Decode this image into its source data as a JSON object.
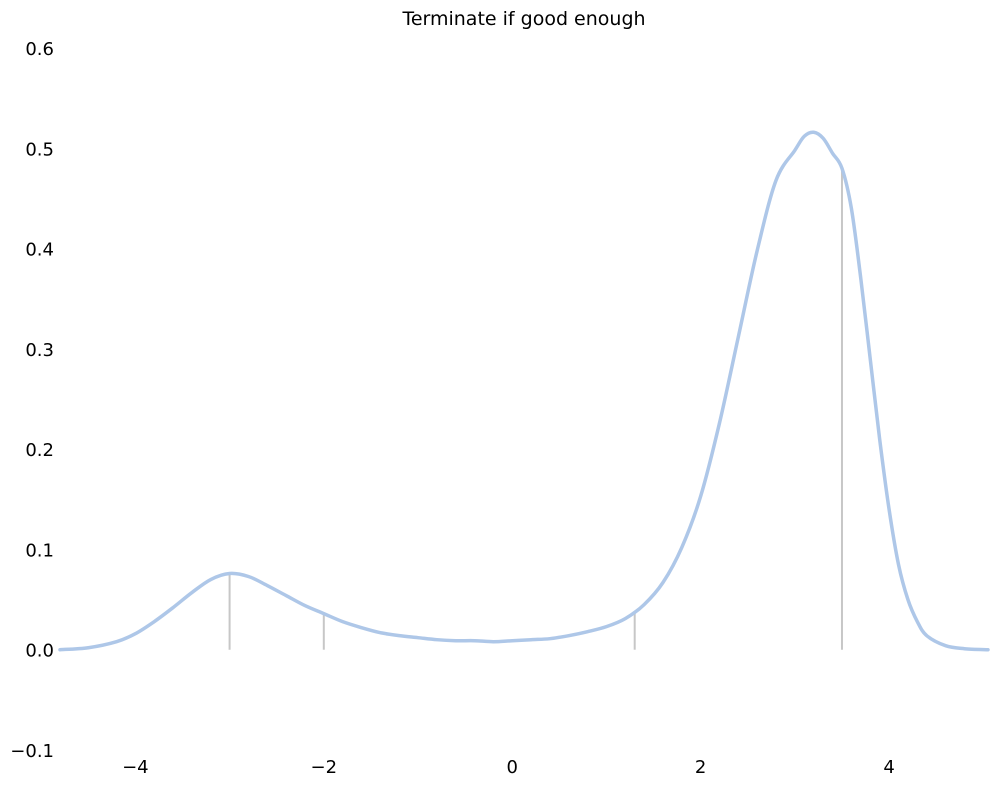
{
  "chart_data": {
    "type": "line",
    "title": "Terminate if good enough",
    "xlabel": "",
    "ylabel": "",
    "xlim": [
      -4.8,
      5.05
    ],
    "ylim": [
      -0.1,
      0.6
    ],
    "grid": false,
    "legend": "none",
    "x_ticks": [
      -4,
      -2,
      0,
      2,
      4
    ],
    "x_tick_labels": [
      "−4",
      "−2",
      "0",
      "2",
      "4"
    ],
    "y_ticks": [
      -0.1,
      0.0,
      0.1,
      0.2,
      0.3,
      0.4,
      0.5,
      0.6
    ],
    "y_tick_labels": [
      "−0.1",
      "0.0",
      "0.1",
      "0.2",
      "0.3",
      "0.4",
      "0.5",
      "0.6"
    ],
    "series": [
      {
        "color": "#aec7e8",
        "x": [
          -4.8,
          -4.5,
          -4.2,
          -4.0,
          -3.8,
          -3.6,
          -3.4,
          -3.2,
          -3.0,
          -2.8,
          -2.6,
          -2.4,
          -2.2,
          -2.0,
          -1.8,
          -1.6,
          -1.4,
          -1.2,
          -1.0,
          -0.8,
          -0.6,
          -0.4,
          -0.2,
          0.0,
          0.2,
          0.4,
          0.6,
          0.8,
          1.0,
          1.2,
          1.4,
          1.6,
          1.8,
          2.0,
          2.2,
          2.4,
          2.6,
          2.8,
          3.0,
          3.1,
          3.2,
          3.3,
          3.4,
          3.5,
          3.6,
          3.7,
          3.8,
          3.9,
          4.0,
          4.1,
          4.2,
          4.3,
          4.4,
          4.6,
          4.8,
          5.05
        ],
        "y": [
          0.0,
          0.002,
          0.008,
          0.016,
          0.028,
          0.042,
          0.057,
          0.07,
          0.076,
          0.073,
          0.064,
          0.054,
          0.044,
          0.036,
          0.028,
          0.022,
          0.017,
          0.014,
          0.012,
          0.01,
          0.009,
          0.009,
          0.008,
          0.009,
          0.01,
          0.011,
          0.014,
          0.018,
          0.023,
          0.031,
          0.045,
          0.067,
          0.102,
          0.153,
          0.226,
          0.312,
          0.398,
          0.468,
          0.498,
          0.512,
          0.516,
          0.51,
          0.495,
          0.48,
          0.44,
          0.37,
          0.29,
          0.21,
          0.14,
          0.085,
          0.05,
          0.028,
          0.014,
          0.004,
          0.001,
          0.0
        ]
      }
    ],
    "stems": {
      "color": "#c7c7c7",
      "x": [
        -3.0,
        -2.0,
        1.3,
        3.5
      ],
      "y": [
        0.075,
        0.035,
        0.037,
        0.48
      ]
    }
  }
}
